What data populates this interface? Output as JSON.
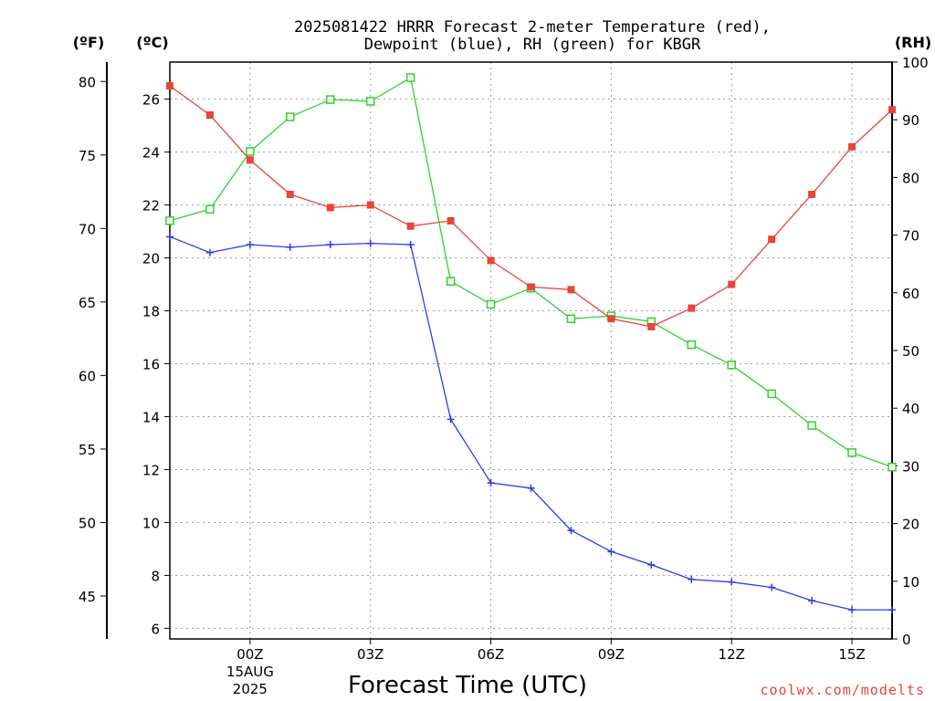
{
  "chart_data": {
    "type": "line",
    "title_lines": [
      "2025081422 HRRR Forecast 2-meter Temperature (red),",
      "Dewpoint (blue), RH (green) for KBGR"
    ],
    "xlabel": "Forecast Time (UTC)",
    "credit": "coolwx.com/modelts",
    "units": {
      "fahrenheit": "(ºF)",
      "celsius": "(ºC)",
      "rh": "(RH)"
    },
    "x_hours": [
      -2,
      -1,
      0,
      1,
      2,
      3,
      4,
      5,
      6,
      7,
      8,
      9,
      10,
      11,
      12,
      13,
      14,
      15,
      16
    ],
    "x_ticks": [
      {
        "hour": 0,
        "label": "00Z",
        "sub1": "15AUG",
        "sub2": "2025"
      },
      {
        "hour": 3,
        "label": "03Z"
      },
      {
        "hour": 6,
        "label": "06Z"
      },
      {
        "hour": 9,
        "label": "09Z"
      },
      {
        "hour": 12,
        "label": "12Z"
      },
      {
        "hour": 15,
        "label": "15Z"
      }
    ],
    "xlim": [
      -2,
      16
    ],
    "celsius_ylim": [
      5.6,
      27.4
    ],
    "celsius_ticks": [
      "6",
      "8",
      "10",
      "12",
      "14",
      "16",
      "18",
      "20",
      "22",
      "24",
      "26"
    ],
    "fahrenheit_ticks": [
      "45",
      "50",
      "55",
      "60",
      "65",
      "70",
      "75",
      "80"
    ],
    "rh_ylim": [
      0,
      100
    ],
    "rh_ticks": [
      "0",
      "10",
      "20",
      "30",
      "40",
      "50",
      "60",
      "70",
      "80",
      "90",
      "100"
    ],
    "series": [
      {
        "key": "temperature",
        "color": "#e8443a",
        "marker": "filled-square",
        "axis": "celsius",
        "values": [
          26.5,
          25.4,
          23.7,
          22.4,
          21.9,
          22.0,
          21.2,
          21.4,
          19.9,
          18.9,
          18.8,
          17.7,
          17.4,
          18.1,
          19.0,
          20.7,
          22.4,
          24.2,
          25.6
        ]
      },
      {
        "key": "dewpoint",
        "color": "#2b3de8",
        "marker": "plus",
        "axis": "celsius",
        "values": [
          20.8,
          20.2,
          20.5,
          20.4,
          20.5,
          20.55,
          20.5,
          13.9,
          11.5,
          11.3,
          9.7,
          8.9,
          8.4,
          7.85,
          7.75,
          7.55,
          7.05,
          6.7,
          6.7
        ]
      },
      {
        "key": "rh",
        "color": "#2ed12e",
        "marker": "open-square",
        "axis": "rh",
        "values": [
          72.5,
          74.5,
          84.5,
          90.5,
          93.5,
          93.2,
          97.3,
          62,
          58,
          60.8,
          55.5,
          56,
          55,
          51,
          47.5,
          42.5,
          37,
          32.3,
          29.8
        ]
      }
    ]
  }
}
